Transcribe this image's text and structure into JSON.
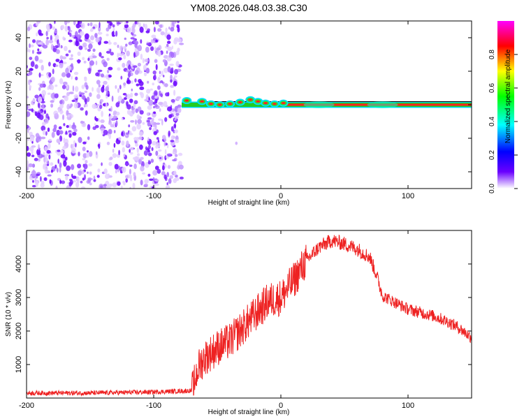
{
  "title": "YM08.2026.048.03.38.C30",
  "chart_data": [
    {
      "type": "heatmap",
      "xlabel": "Height of straight line (km)",
      "ylabel": "Frequency (Hz)",
      "xlim": [
        -200,
        150
      ],
      "ylim": [
        -50,
        50
      ],
      "xticks": [
        -200,
        -100,
        0,
        100
      ],
      "yticks": [
        -40,
        -20,
        0,
        20,
        40
      ],
      "noise_region_x": [
        -200,
        -78
      ],
      "signal_start_x": -78,
      "signal_frequency_hz": 0,
      "colorbar": {
        "label": "Normalized spectral amplitude",
        "range": [
          0,
          1
        ],
        "ticks": [
          "0.0",
          "0.2",
          "0.4",
          "0.6",
          "0.8"
        ],
        "colors": [
          "#ffffff",
          "#6a00ff",
          "#0000ff",
          "#00ffff",
          "#00ff00",
          "#ffff00",
          "#ff0000",
          "#ff00ff"
        ]
      }
    },
    {
      "type": "line",
      "xlabel": "Height of straight line (km)",
      "ylabel": "SNR (10 * v/v)",
      "xlim": [
        -200,
        150
      ],
      "ylim": [
        0,
        5000
      ],
      "xticks": [
        -200,
        -100,
        0,
        100
      ],
      "yticks": [
        1000,
        2000,
        3000,
        4000
      ],
      "color": "#ee2222",
      "series": [
        {
          "name": "SNR",
          "x": [
            -200,
            -150,
            -100,
            -70,
            -65,
            -60,
            -50,
            -40,
            -30,
            -20,
            -10,
            0,
            10,
            20,
            30,
            40,
            50,
            60,
            70,
            75,
            80,
            90,
            100,
            110,
            120,
            130,
            140,
            150
          ],
          "values": [
            150,
            150,
            180,
            220,
            900,
            1200,
            1500,
            1700,
            2100,
            2500,
            2900,
            3000,
            3500,
            4100,
            4500,
            4700,
            4600,
            4450,
            4200,
            3700,
            3050,
            2850,
            2650,
            2550,
            2450,
            2300,
            2100,
            1800
          ]
        }
      ]
    }
  ]
}
